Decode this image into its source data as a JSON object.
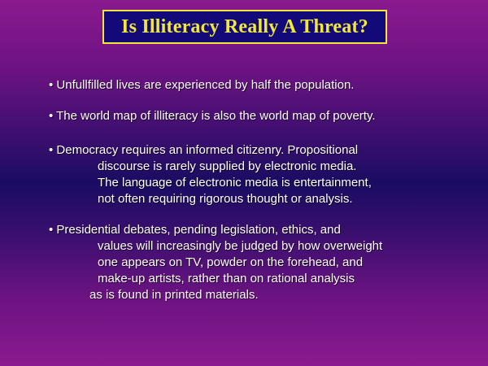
{
  "title": "Is Illiteracy Really A Threat?",
  "bullets": [
    {
      "lines": [
        "• Unfullfilled lives are experienced by half the population."
      ]
    },
    {
      "lines": [
        "• The world map of illiteracy is also the world map of poverty."
      ]
    },
    {
      "lines": [
        "• Democracy requires an informed citizenry.  Propositional",
        "discourse is rarely supplied by electronic media.",
        "The language of electronic media is entertainment,",
        "not often requiring rigorous thought or analysis."
      ]
    },
    {
      "lines": [
        "• Presidential debates, pending legislation, ethics, and",
        "values will increasingly be judged by how overweight",
        "one appears on TV, powder on the forehead, and",
        "make-up artists, rather than on rational analysis",
        "as is found in printed materials."
      ]
    }
  ],
  "colors": {
    "title_text": "#f2e83a",
    "title_background": "#120a78",
    "body_text": "#ffffff",
    "background_edge": "#8a1a8f",
    "background_center": "#1a0c62"
  }
}
